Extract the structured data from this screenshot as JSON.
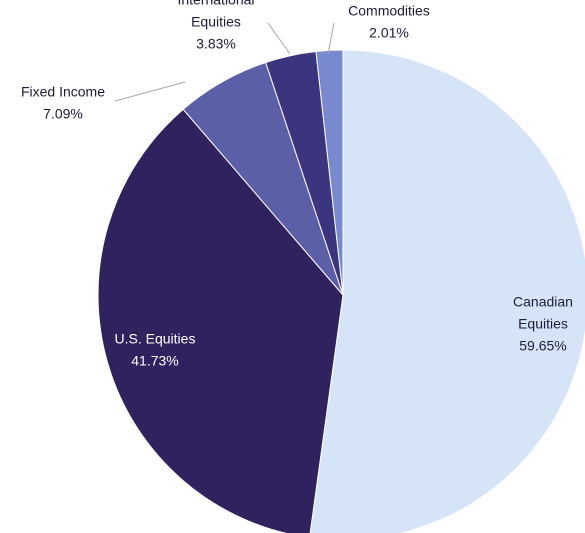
{
  "chart_data": {
    "type": "pie",
    "title": "",
    "legend": "none",
    "slices": [
      {
        "label_lines": [
          "Canadian",
          "Equities"
        ],
        "pct_label": "59.65%",
        "value": 59.65,
        "color": "#d6e4f8",
        "text_color": "#1b1b3a"
      },
      {
        "label_lines": [
          "U.S. Equities"
        ],
        "pct_label": "41.73%",
        "value": 41.73,
        "color": "#30225e",
        "text_color": "#ffffff"
      },
      {
        "label_lines": [
          "Fixed Income"
        ],
        "pct_label": "7.09%",
        "value": 7.09,
        "color": "#5a5fa8",
        "text_color": "#1b1b3a"
      },
      {
        "label_lines": [
          "International",
          "Equities"
        ],
        "pct_label": "3.83%",
        "value": 3.83,
        "color": "#3b3580",
        "text_color": "#1b1b3a"
      },
      {
        "label_lines": [
          "Commodities"
        ],
        "pct_label": "2.01%",
        "value": 2.01,
        "color": "#7889cf",
        "text_color": "#1b1b3a"
      }
    ]
  }
}
